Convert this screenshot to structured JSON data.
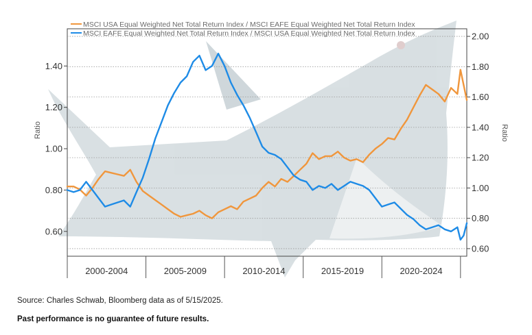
{
  "chart_data": {
    "type": "line",
    "title": "",
    "xlabel": "",
    "ylabel": "Ratio",
    "y2label": "Ratio",
    "ylim": [
      0.48,
      1.58
    ],
    "y2lim": [
      0.55,
      2.05
    ],
    "yticks": [
      "0.60",
      "0.80",
      "1.00",
      "1.20",
      "1.40"
    ],
    "y2ticks": [
      "0.60",
      "0.80",
      "1.00",
      "1.20",
      "1.40",
      "1.60",
      "1.80",
      "2.00"
    ],
    "periods": [
      "2000-2004",
      "2005-2009",
      "2010-2014",
      "2015-2019",
      "2020-2024"
    ],
    "x_range": [
      2000.0,
      2025.4
    ],
    "series": [
      {
        "name": "MSCI USA Equal Weighted Net Total Return Index / MSCI EAFE Equal Weighted Net Total Return Index",
        "axis": "right",
        "color": "#f0963c",
        "x": [
          2000.0,
          2000.4,
          2000.8,
          2001.2,
          2001.6,
          2002.0,
          2002.4,
          2002.8,
          2003.2,
          2003.6,
          2004.0,
          2004.4,
          2004.8,
          2005.2,
          2005.6,
          2006.0,
          2006.4,
          2006.8,
          2007.2,
          2007.6,
          2008.0,
          2008.4,
          2008.8,
          2009.2,
          2009.6,
          2010.0,
          2010.4,
          2010.8,
          2011.2,
          2011.6,
          2012.0,
          2012.4,
          2012.8,
          2013.2,
          2013.6,
          2014.0,
          2014.4,
          2014.8,
          2015.2,
          2015.6,
          2016.0,
          2016.4,
          2016.8,
          2017.2,
          2017.6,
          2018.0,
          2018.4,
          2018.8,
          2019.2,
          2019.6,
          2020.0,
          2020.4,
          2020.8,
          2021.2,
          2021.6,
          2022.0,
          2022.4,
          2022.8,
          2023.2,
          2023.6,
          2024.0,
          2024.4,
          2024.8,
          2025.0,
          2025.2,
          2025.4
        ],
        "values": [
          1.01,
          1.01,
          0.99,
          0.95,
          1.0,
          1.06,
          1.11,
          1.1,
          1.09,
          1.08,
          1.12,
          1.04,
          0.98,
          0.95,
          0.92,
          0.89,
          0.86,
          0.83,
          0.81,
          0.82,
          0.83,
          0.85,
          0.82,
          0.8,
          0.84,
          0.86,
          0.88,
          0.86,
          0.91,
          0.93,
          0.95,
          1.0,
          1.04,
          1.01,
          1.06,
          1.04,
          1.08,
          1.12,
          1.16,
          1.23,
          1.19,
          1.21,
          1.21,
          1.24,
          1.2,
          1.18,
          1.19,
          1.17,
          1.22,
          1.26,
          1.29,
          1.33,
          1.32,
          1.39,
          1.45,
          1.53,
          1.61,
          1.68,
          1.65,
          1.62,
          1.57,
          1.66,
          1.62,
          1.78,
          1.68,
          1.58
        ]
      },
      {
        "name": "MSCI EAFE Equal Weighted Net Total Return Index / MSCI USA Equal Weighted Net Total Return Index",
        "axis": "left",
        "color": "#1e8be6",
        "x": [
          2000.0,
          2000.4,
          2000.8,
          2001.2,
          2001.6,
          2002.0,
          2002.4,
          2002.8,
          2003.2,
          2003.6,
          2004.0,
          2004.4,
          2004.8,
          2005.2,
          2005.6,
          2006.0,
          2006.4,
          2006.8,
          2007.2,
          2007.6,
          2008.0,
          2008.4,
          2008.8,
          2009.2,
          2009.6,
          2010.0,
          2010.4,
          2010.8,
          2011.2,
          2011.6,
          2012.0,
          2012.4,
          2012.8,
          2013.2,
          2013.6,
          2014.0,
          2014.4,
          2014.8,
          2015.2,
          2015.6,
          2016.0,
          2016.4,
          2016.8,
          2017.2,
          2017.6,
          2018.0,
          2018.4,
          2018.8,
          2019.2,
          2019.6,
          2020.0,
          2020.4,
          2020.8,
          2021.2,
          2021.6,
          2022.0,
          2022.4,
          2022.8,
          2023.2,
          2023.6,
          2024.0,
          2024.4,
          2024.8,
          2025.0,
          2025.2,
          2025.4
        ],
        "values": [
          0.8,
          0.79,
          0.8,
          0.84,
          0.8,
          0.76,
          0.72,
          0.73,
          0.74,
          0.75,
          0.72,
          0.79,
          0.86,
          0.95,
          1.05,
          1.13,
          1.21,
          1.27,
          1.32,
          1.35,
          1.42,
          1.45,
          1.38,
          1.4,
          1.46,
          1.4,
          1.32,
          1.26,
          1.21,
          1.15,
          1.08,
          1.01,
          0.98,
          0.97,
          0.95,
          0.91,
          0.87,
          0.85,
          0.84,
          0.8,
          0.82,
          0.81,
          0.83,
          0.8,
          0.82,
          0.84,
          0.83,
          0.82,
          0.8,
          0.76,
          0.72,
          0.73,
          0.74,
          0.71,
          0.68,
          0.66,
          0.63,
          0.61,
          0.62,
          0.63,
          0.61,
          0.6,
          0.62,
          0.56,
          0.58,
          0.64
        ]
      }
    ]
  },
  "footer": {
    "source": "Source: Charles Schwab, Bloomberg data as of 5/15/2025.",
    "disclaimer": "Past performance is no guarantee of future results."
  }
}
